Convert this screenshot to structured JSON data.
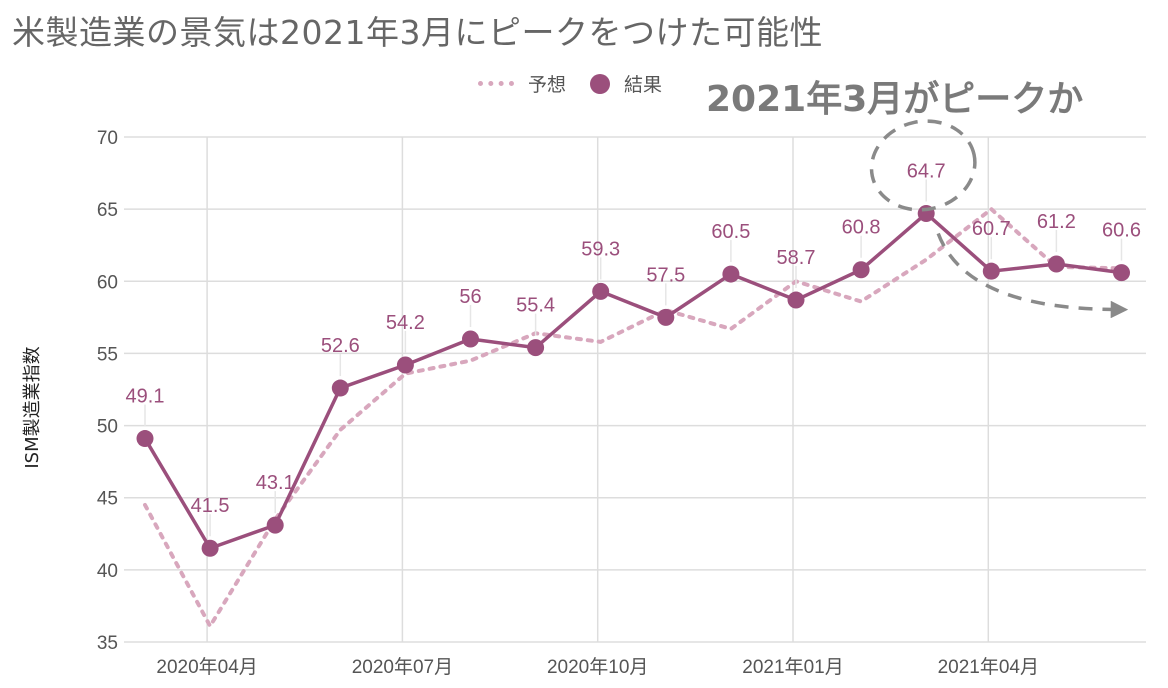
{
  "title": "米製造業の景気は2021年3月にピークをつけた可能性",
  "annotation": "2021年3月がピークか",
  "colors": {
    "result": "#9b4f7c",
    "forecast": "#d8a7bd",
    "grid": "#dddddd",
    "annotation": "#8a8a8a"
  },
  "chart_data": {
    "type": "line",
    "ylabel": "ISM製造業指数",
    "ylim": [
      35,
      70
    ],
    "yticks": [
      "35",
      "40",
      "45",
      "50",
      "55",
      "60",
      "65",
      "70"
    ],
    "x": [
      "2020-03",
      "2020-04",
      "2020-05",
      "2020-06",
      "2020-07",
      "2020-08",
      "2020-09",
      "2020-10",
      "2020-11",
      "2020-12",
      "2021-01",
      "2021-02",
      "2021-03",
      "2021-04",
      "2021-05",
      "2021-06"
    ],
    "xtick_labels": [
      "2020年04月",
      "2020年07月",
      "2020年10月",
      "2021年01月",
      "2021年04月"
    ],
    "legend": {
      "position": "top-right",
      "entries": [
        "予想",
        "結果"
      ]
    },
    "series": [
      {
        "name": "予想",
        "style": "dotted",
        "values": [
          44.5,
          36.1,
          43.5,
          49.7,
          53.6,
          54.5,
          56.4,
          55.8,
          58.0,
          56.7,
          60.0,
          58.6,
          61.5,
          65.0,
          61.0,
          60.9
        ]
      },
      {
        "name": "結果",
        "style": "solid-markers",
        "values": [
          49.1,
          41.5,
          43.1,
          52.6,
          54.2,
          56,
          55.4,
          59.3,
          57.5,
          60.5,
          58.7,
          60.8,
          64.7,
          60.7,
          61.2,
          60.6
        ],
        "labels": [
          "49.1",
          "41.5",
          "43.1",
          "52.6",
          "54.2",
          "56",
          "55.4",
          "59.3",
          "57.5",
          "60.5",
          "58.7",
          "60.8",
          "64.7",
          "60.7",
          "61.2",
          "60.6"
        ]
      }
    ],
    "highlight": {
      "index": 12,
      "label": "2021年3月がピークか"
    }
  }
}
